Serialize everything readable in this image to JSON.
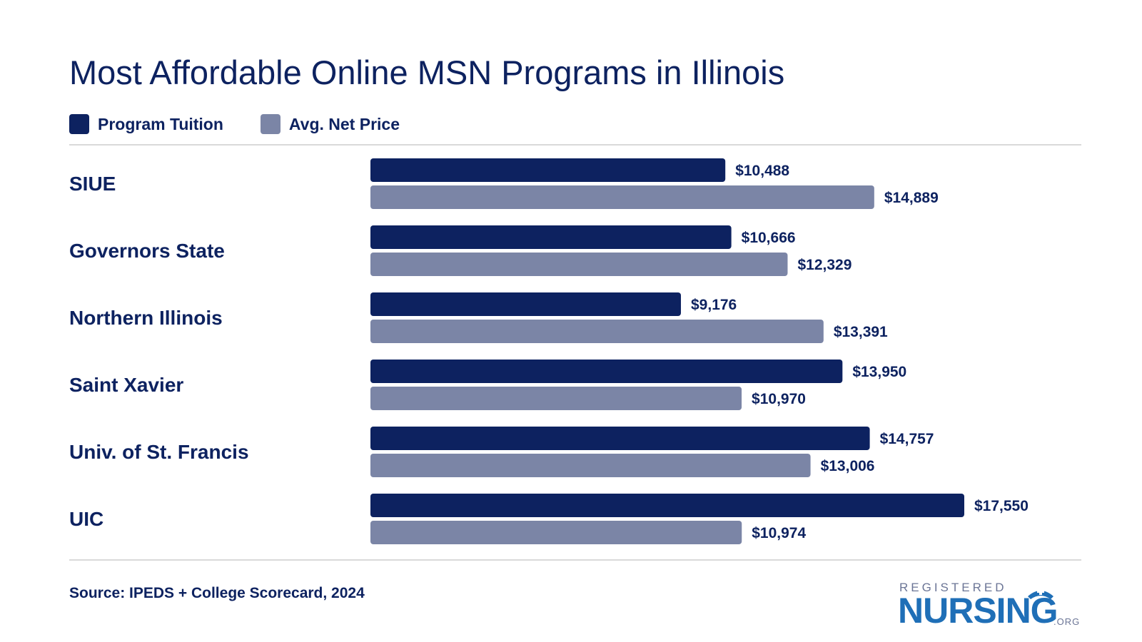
{
  "title": "Most Affordable Online MSN Programs in Illinois",
  "legend": {
    "items": [
      {
        "label": "Program Tuition",
        "color": "#0d2260"
      },
      {
        "label": "Avg. Net Price",
        "color": "#7b85a6"
      }
    ]
  },
  "source": "Source: IPEDS + College Scorecard, 2024",
  "logo": {
    "top": "REGISTERED",
    "main": "NURSING",
    "suffix": ".ORG",
    "icon": "nurse-cap-icon"
  },
  "chart_data": {
    "type": "bar",
    "orientation": "horizontal",
    "title": "Most Affordable Online MSN Programs in Illinois",
    "categories": [
      "SIUE",
      "Governors State",
      "Northern Illinois",
      "Saint Xavier",
      "Univ. of St. Francis",
      "UIC"
    ],
    "series": [
      {
        "name": "Program Tuition",
        "color": "#0d2260",
        "values": [
          10488,
          10666,
          9176,
          13950,
          14757,
          17550
        ],
        "labels": [
          "$10,488",
          "$10,666",
          "$9,176",
          "$13,950",
          "$14,757",
          "$17,550"
        ]
      },
      {
        "name": "Avg. Net Price",
        "color": "#7b85a6",
        "values": [
          14889,
          12329,
          13391,
          10970,
          13006,
          10974
        ],
        "labels": [
          "$14,889",
          "$12,329",
          "$13,391",
          "$10,970",
          "$13,006",
          "$10,974"
        ]
      }
    ],
    "xlim": [
      0,
      17550
    ],
    "grid": false,
    "legend_position": "top-left"
  }
}
